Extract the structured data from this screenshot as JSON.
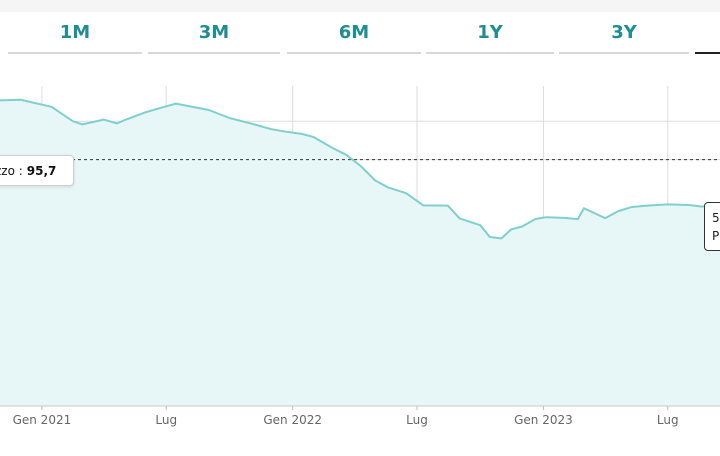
{
  "range_tabs": [
    {
      "label": "1M"
    },
    {
      "label": "3M"
    },
    {
      "label": "6M"
    },
    {
      "label": "1Y"
    },
    {
      "label": "3Y"
    }
  ],
  "tooltip_left": {
    "label": "zzo :",
    "value": "95,7"
  },
  "tooltip_right": {
    "line1": "5",
    "line2": "P"
  },
  "colors": {
    "accent": "#1f8d91",
    "line": "#7fcfcd",
    "area": "#e7f7f7",
    "grid": "#dddddd",
    "reference_line": "#333333"
  },
  "chart_data": {
    "type": "area",
    "x_tick_labels": [
      "Gen 2021",
      "Lug",
      "Gen 2022",
      "Lug",
      "Gen 2023",
      "Lug"
    ],
    "x_tick_dates": [
      "2021-01-01",
      "2021-07-01",
      "2022-01-01",
      "2022-07-01",
      "2023-01-01",
      "2023-07-01"
    ],
    "x_range": [
      "2020-11-01",
      "2023-09-15"
    ],
    "y_range": [
      0,
      100
    ],
    "gridlines": [
      89.0,
      77.0,
      49.0
    ],
    "reference_line": 77.0,
    "series": [
      {
        "x": [
          "2020-11-01",
          "2020-12-01",
          "2021-01-15",
          "2021-02-15",
          "2021-03-01",
          "2021-04-01",
          "2021-04-20",
          "2021-05-01",
          "2021-06-01",
          "2021-06-20",
          "2021-07-15",
          "2021-08-15",
          "2021-09-01",
          "2021-10-01",
          "2021-11-01",
          "2021-12-01",
          "2021-12-20",
          "2022-01-15",
          "2022-02-01",
          "2022-03-01",
          "2022-03-20",
          "2022-04-10",
          "2022-05-01",
          "2022-05-20",
          "2022-06-15",
          "2022-07-10",
          "2022-08-15",
          "2022-09-01",
          "2022-10-01",
          "2022-10-15",
          "2022-11-01",
          "2022-11-15",
          "2022-12-01",
          "2022-12-20",
          "2023-01-05",
          "2023-02-01",
          "2023-02-20",
          "2023-03-01",
          "2023-04-01",
          "2023-04-20",
          "2023-05-10",
          "2023-06-01",
          "2023-07-01",
          "2023-08-01",
          "2023-08-20",
          "2023-09-01",
          "2023-09-15"
        ],
        "values": [
          95.5,
          95.7,
          93.5,
          89.0,
          88.0,
          89.5,
          88.3,
          89.3,
          91.8,
          93.0,
          94.5,
          93.2,
          92.5,
          90.0,
          88.3,
          86.5,
          85.8,
          85.0,
          84.0,
          80.5,
          78.5,
          75.0,
          70.5,
          68.3,
          66.5,
          62.7,
          62.6,
          58.6,
          56.5,
          52.8,
          52.4,
          55.2,
          56.1,
          58.4,
          59.0,
          58.8,
          58.4,
          61.8,
          58.7,
          60.9,
          62.2,
          62.6,
          63.0,
          62.8,
          62.3,
          62.8,
          63.2
        ]
      }
    ]
  }
}
